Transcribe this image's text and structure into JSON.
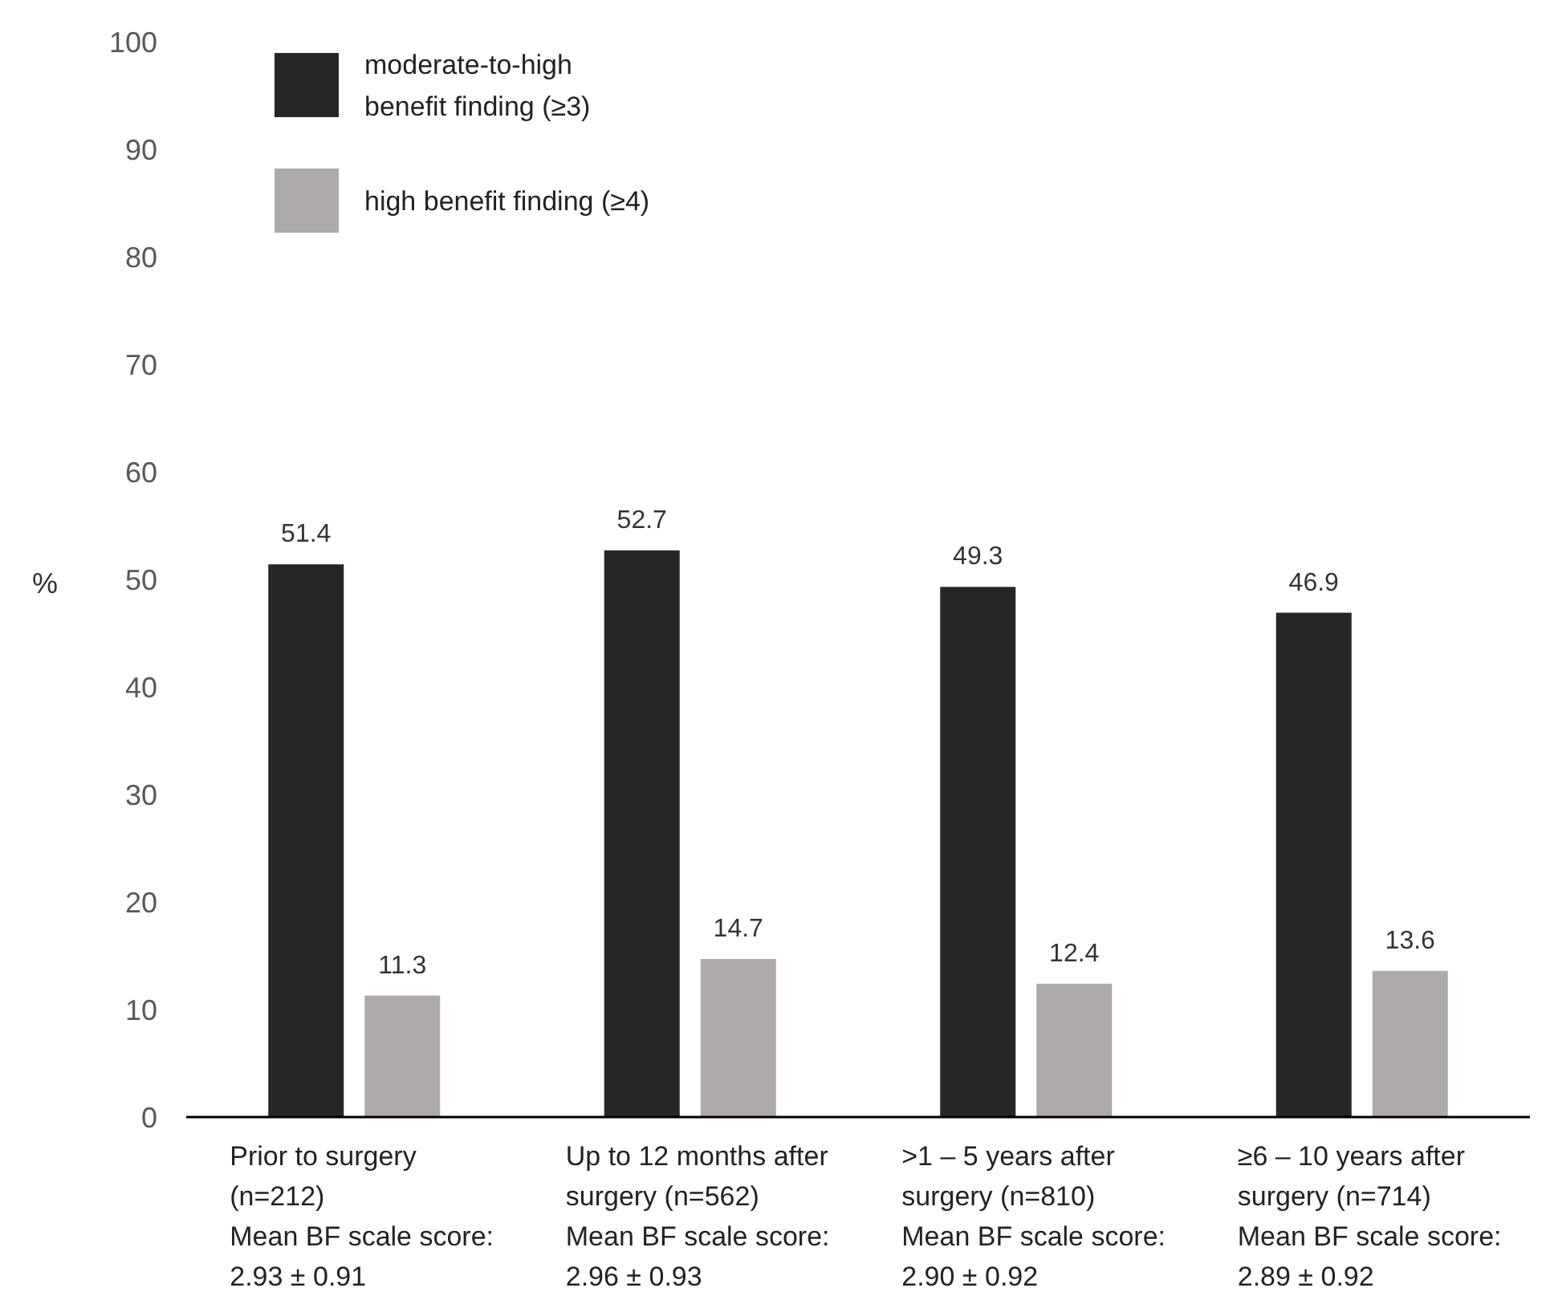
{
  "chart_data": {
    "type": "bar",
    "ylabel": "%",
    "categories": [
      "Prior to surgery\n(n=212)\nMean BF scale score:\n2.93 ± 0.91",
      "Up to 12 months after\nsurgery (n=562)\nMean BF scale score:\n2.96 ± 0.93",
      ">1 – 5 years after\nsurgery (n=810)\nMean BF scale score:\n2.90 ± 0.92",
      "≥6 – 10 years after\nsurgery (n=714)\nMean BF scale score:\n2.89 ± 0.92"
    ],
    "series": [
      {
        "name": "moderate-to-high\nbenefit finding (≥3)",
        "color": "#262626",
        "values": [
          51.4,
          52.7,
          49.3,
          46.9
        ]
      },
      {
        "name": "high benefit finding (≥4)",
        "color": "#aeaaaa",
        "values": [
          11.3,
          14.7,
          12.4,
          13.6
        ]
      }
    ],
    "ylim": [
      0,
      100
    ],
    "yticks": [
      0,
      10,
      20,
      30,
      40,
      50,
      60,
      70,
      80,
      90,
      100
    ],
    "data_labels": true,
    "grid": false,
    "legend": "top left"
  }
}
